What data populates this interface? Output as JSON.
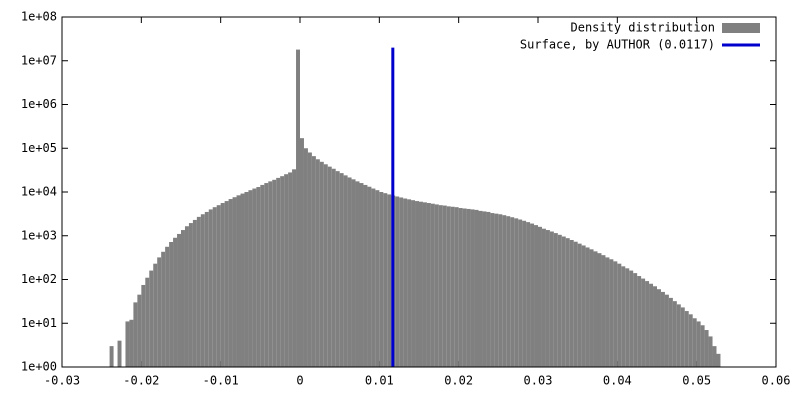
{
  "chart_data": {
    "type": "histogram",
    "ylog": true,
    "grid": false,
    "legend": "top right",
    "xlim": [
      -0.03,
      0.06
    ],
    "xticks": [
      -0.03,
      -0.02,
      -0.01,
      0,
      0.01,
      0.02,
      0.03,
      0.04,
      0.05,
      0.06
    ],
    "ylim": [
      1,
      100000000
    ],
    "yticks": [
      {
        "value": 1,
        "label": "1e+00"
      },
      {
        "value": 10,
        "label": "1e+01"
      },
      {
        "value": 100,
        "label": "1e+02"
      },
      {
        "value": 1000,
        "label": "1e+03"
      },
      {
        "value": 10000,
        "label": "1e+04"
      },
      {
        "value": 100000,
        "label": "1e+05"
      },
      {
        "value": 1000000,
        "label": "1e+06"
      },
      {
        "value": 10000000,
        "label": "1e+07"
      },
      {
        "value": 100000000,
        "label": "1e+08"
      }
    ],
    "series": [
      {
        "type": "histogram",
        "name": "Density distribution",
        "color": "#808080",
        "bins": [
          -0.024,
          -0.0235,
          -0.023,
          -0.0225,
          -0.022,
          -0.0215,
          -0.021,
          -0.0205,
          -0.02,
          -0.0195,
          -0.019,
          -0.0185,
          -0.018,
          -0.0175,
          -0.017,
          -0.0165,
          -0.016,
          -0.0155,
          -0.015,
          -0.0145,
          -0.014,
          -0.0135,
          -0.013,
          -0.0125,
          -0.012,
          -0.0115,
          -0.011,
          -0.0105,
          -0.01,
          -0.0095,
          -0.009,
          -0.0085,
          -0.008,
          -0.0075,
          -0.007,
          -0.0065,
          -0.006,
          -0.0055,
          -0.005,
          -0.0045,
          -0.004,
          -0.0035,
          -0.003,
          -0.0025,
          -0.002,
          -0.0015,
          -0.001,
          -0.0005,
          0,
          0.0005,
          0.001,
          0.0015,
          0.002,
          0.0025,
          0.003,
          0.0035,
          0.004,
          0.0045,
          0.005,
          0.0055,
          0.006,
          0.0065,
          0.007,
          0.0075,
          0.008,
          0.0085,
          0.009,
          0.0095,
          0.01,
          0.0105,
          0.011,
          0.0115,
          0.012,
          0.0125,
          0.013,
          0.0135,
          0.014,
          0.0145,
          0.015,
          0.0155,
          0.016,
          0.0165,
          0.017,
          0.0175,
          0.018,
          0.0185,
          0.019,
          0.0195,
          0.02,
          0.0205,
          0.021,
          0.0215,
          0.022,
          0.0225,
          0.023,
          0.0235,
          0.024,
          0.0245,
          0.025,
          0.0255,
          0.026,
          0.0265,
          0.027,
          0.0275,
          0.028,
          0.0285,
          0.029,
          0.0295,
          0.03,
          0.0305,
          0.031,
          0.0315,
          0.032,
          0.0325,
          0.033,
          0.0335,
          0.034,
          0.0345,
          0.035,
          0.0355,
          0.036,
          0.0365,
          0.037,
          0.0375,
          0.038,
          0.0385,
          0.039,
          0.0395,
          0.04,
          0.0405,
          0.041,
          0.0415,
          0.042,
          0.0425,
          0.043,
          0.0435,
          0.044,
          0.0445,
          0.045,
          0.0455,
          0.046,
          0.0465,
          0.047,
          0.0475,
          0.048,
          0.0485,
          0.049,
          0.0495,
          0.05,
          0.0505,
          0.051,
          0.0515,
          0.052,
          0.0525,
          0.053
        ],
        "values": [
          3,
          1,
          4,
          1,
          11,
          12,
          30,
          45,
          75,
          110,
          160,
          230,
          320,
          430,
          560,
          720,
          900,
          1100,
          1350,
          1650,
          1950,
          2300,
          2700,
          3100,
          3500,
          4000,
          4500,
          5000,
          5600,
          6200,
          6900,
          7600,
          8400,
          9200,
          10000,
          11000,
          12000,
          13000,
          14500,
          16000,
          17500,
          19000,
          21000,
          23000,
          25500,
          28000,
          33000,
          18000000,
          170000,
          100000,
          80000,
          66000,
          56000,
          49000,
          43000,
          38000,
          34000,
          30000,
          27000,
          24000,
          21500,
          19500,
          17500,
          16000,
          14500,
          13200,
          12000,
          11000,
          10000,
          9400,
          8800,
          8300,
          7900,
          7500,
          7100,
          6800,
          6500,
          6200,
          6000,
          5800,
          5600,
          5400,
          5200,
          5000,
          4900,
          4700,
          4600,
          4500,
          4300,
          4200,
          4100,
          4000,
          3900,
          3700,
          3600,
          3500,
          3300,
          3200,
          3100,
          2950,
          2800,
          2650,
          2500,
          2350,
          2200,
          2050,
          1900,
          1750,
          1600,
          1450,
          1350,
          1250,
          1150,
          1050,
          960,
          880,
          800,
          730,
          660,
          600,
          540,
          490,
          440,
          400,
          360,
          320,
          290,
          260,
          230,
          200,
          180,
          160,
          140,
          120,
          105,
          92,
          80,
          70,
          60,
          52,
          45,
          38,
          32,
          27,
          23,
          19,
          16,
          13,
          11,
          9,
          7,
          5,
          3,
          2
        ]
      },
      {
        "type": "line",
        "name": "Surface, by AUTHOR (0.0117)",
        "color": "#0000cc",
        "x": [
          0.0117,
          0.0117
        ],
        "values": [
          1,
          20000000
        ]
      }
    ]
  }
}
